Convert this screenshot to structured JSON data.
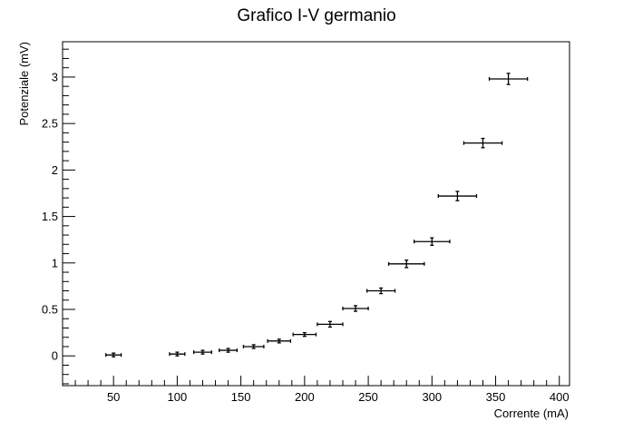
{
  "chart_data": {
    "type": "scatter",
    "title": "Grafico I-V germanio",
    "xlabel": "Corrente (mA)",
    "ylabel": "Potenziale (mV)",
    "xlim": [
      10,
      408
    ],
    "ylim": [
      -0.32,
      3.38
    ],
    "grid": false,
    "xticks": [
      50,
      100,
      150,
      200,
      250,
      300,
      350,
      400
    ],
    "xtick_labels": [
      "50",
      "100",
      "150",
      "200",
      "250",
      "300",
      "350",
      "400"
    ],
    "yticks": [
      0,
      0.5,
      1,
      1.5,
      2,
      2.5,
      3
    ],
    "ytick_labels": [
      "0",
      "0.5",
      "1",
      "1.5",
      "2",
      "2.5",
      "3"
    ],
    "series": [
      {
        "x": [
          50,
          100,
          120,
          140,
          160,
          180,
          200,
          220,
          240,
          260,
          280,
          300,
          320,
          340,
          360
        ],
        "y": [
          0.01,
          0.02,
          0.04,
          0.06,
          0.1,
          0.16,
          0.23,
          0.34,
          0.51,
          0.7,
          0.99,
          1.23,
          1.72,
          2.29,
          2.98
        ],
        "x_err": [
          6,
          6,
          7,
          7,
          8,
          9,
          9,
          10,
          10,
          11,
          14,
          14,
          15,
          15,
          15
        ],
        "y_err": [
          0.02,
          0.02,
          0.02,
          0.02,
          0.02,
          0.02,
          0.02,
          0.03,
          0.03,
          0.03,
          0.04,
          0.04,
          0.05,
          0.05,
          0.06
        ]
      }
    ]
  }
}
